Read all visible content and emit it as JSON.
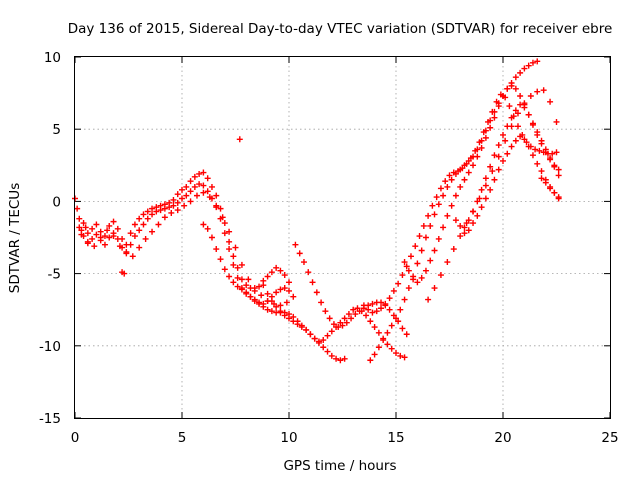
{
  "chart_data": {
    "type": "scatter",
    "title": "Day 136 of 2015, Sidereal Day-to-day VTEC variation (SDTVAR) for receiver ebre",
    "xlabel": "GPS time / hours",
    "ylabel": "SDTVAR / TECUs",
    "xlim": [
      0,
      25
    ],
    "ylim": [
      -15,
      10
    ],
    "xticks": [
      "0",
      "5",
      "10",
      "15",
      "20",
      "25"
    ],
    "yticks": [
      "-15",
      "-10",
      "-5",
      "0",
      "5",
      "10"
    ],
    "grid": true,
    "marker": "plus",
    "color": "#ff0000",
    "series": [
      {
        "label": "",
        "x": [
          0.0,
          0.1,
          0.2,
          0.3,
          0.4,
          0.5,
          0.6,
          0.8,
          1.0,
          1.2,
          1.4,
          1.6,
          1.8,
          2.0,
          2.2,
          2.4,
          2.6,
          2.8,
          3.0,
          3.2,
          3.4,
          3.6,
          3.8,
          4.0,
          4.2,
          4.4,
          4.6,
          4.8,
          5.0,
          5.2,
          5.4,
          5.6,
          5.8,
          6.0,
          6.2,
          6.4,
          6.6,
          6.8,
          7.0,
          7.2,
          7.4,
          7.6,
          7.8,
          8.0,
          8.2,
          8.4,
          8.6,
          8.8,
          9.0,
          9.2,
          9.4,
          9.6,
          9.8,
          10.0,
          0.2,
          0.4,
          0.6,
          0.8,
          1.0,
          1.2,
          1.4,
          1.6,
          1.8,
          2.0,
          2.2,
          2.4,
          2.6,
          2.8,
          3.0,
          3.2,
          3.4,
          3.6,
          3.8,
          4.0,
          4.2,
          4.4,
          4.6,
          4.8,
          5.0,
          5.2,
          5.4,
          5.6,
          5.8,
          6.0,
          6.2,
          6.4,
          6.6,
          6.8,
          7.0,
          7.2,
          7.4,
          7.6,
          7.8,
          8.0,
          8.2,
          8.4,
          8.6,
          8.8,
          9.0,
          9.2,
          9.4,
          9.6,
          9.8,
          10.0,
          0.3,
          0.6,
          0.9,
          1.2,
          1.5,
          1.8,
          2.1,
          2.4,
          2.7,
          3.0,
          3.3,
          3.6,
          3.9,
          4.2,
          4.5,
          4.8,
          5.1,
          5.4,
          5.7,
          6.0,
          6.3,
          6.6,
          6.9,
          7.2,
          7.5,
          7.8,
          8.1,
          8.4,
          8.7,
          9.0,
          9.3,
          9.6,
          9.9,
          10.2,
          2.2,
          2.3,
          7.7,
          6.0,
          6.2,
          6.4,
          6.6,
          6.8,
          7.0,
          7.2,
          7.4,
          7.6,
          7.8,
          8.0,
          8.2,
          8.4,
          8.6,
          8.8,
          9.0,
          9.2,
          9.4,
          9.6,
          9.8,
          10.0,
          10.2,
          10.4,
          10.6,
          10.8,
          11.0,
          11.2,
          11.4,
          11.6,
          11.8,
          12.0,
          12.2,
          12.4,
          12.6,
          8.8,
          9.0,
          9.2,
          9.4,
          9.6,
          9.8,
          10.0,
          10.2,
          10.4,
          10.6,
          10.8,
          11.0,
          11.2,
          11.4,
          11.6,
          11.8,
          12.0,
          12.2,
          12.4,
          12.6,
          12.8,
          13.0,
          13.2,
          13.4,
          13.6,
          13.8,
          14.0,
          14.2,
          14.4,
          14.6,
          14.8,
          15.0,
          15.2,
          15.4,
          10.3,
          10.5,
          10.7,
          10.9,
          11.1,
          11.3,
          11.5,
          11.7,
          11.9,
          12.1,
          12.3,
          12.5,
          12.7,
          12.9,
          13.1,
          13.3,
          13.5,
          13.7,
          13.9,
          14.1,
          14.3,
          14.5,
          14.7,
          14.9,
          15.1,
          15.3,
          15.5,
          13.8,
          14.0,
          14.2,
          14.4,
          14.6,
          14.8,
          15.0,
          15.2,
          15.4,
          15.6,
          15.8,
          16.0,
          16.2,
          16.4,
          16.6,
          16.8,
          17.0,
          17.2,
          17.4,
          17.6,
          17.8,
          18.0,
          18.2,
          18.4,
          18.6,
          18.8,
          19.0,
          19.2,
          19.4,
          19.6,
          19.8,
          20.0,
          20.2,
          20.4,
          20.6,
          20.8,
          21.0,
          21.2,
          21.4,
          21.6,
          13.5,
          13.7,
          13.9,
          14.1,
          14.3,
          14.5,
          14.7,
          14.9,
          15.1,
          15.3,
          15.5,
          15.7,
          15.9,
          16.1,
          16.3,
          16.5,
          16.7,
          16.9,
          17.1,
          17.3,
          17.5,
          17.7,
          17.9,
          18.1,
          18.3,
          18.5,
          18.7,
          18.9,
          19.1,
          19.3,
          19.5,
          19.7,
          19.9,
          20.1,
          20.3,
          20.5,
          20.7,
          20.9,
          21.1,
          21.3,
          21.5,
          21.7,
          21.9,
          22.1,
          22.3,
          22.5,
          15.4,
          15.6,
          15.8,
          16.0,
          16.2,
          16.4,
          16.6,
          16.8,
          17.0,
          17.2,
          17.4,
          17.6,
          17.8,
          18.0,
          18.2,
          18.4,
          18.6,
          18.8,
          19.0,
          19.2,
          19.4,
          19.6,
          19.8,
          20.0,
          20.2,
          20.4,
          20.6,
          20.8,
          21.0,
          21.2,
          21.4,
          21.6,
          21.8,
          22.0,
          22.2,
          22.4,
          22.6,
          16.5,
          16.8,
          17.1,
          17.4,
          17.7,
          18.0,
          18.3,
          18.6,
          18.9,
          19.2,
          19.5,
          19.8,
          20.1,
          20.4,
          20.7,
          21.0,
          21.3,
          21.6,
          21.9,
          22.2,
          22.5,
          17.8,
          18.0,
          18.2,
          18.4,
          18.6,
          18.8,
          19.0,
          19.2,
          19.4,
          19.6,
          19.8,
          20.0,
          20.2,
          20.4,
          20.6,
          20.8,
          21.0,
          21.2,
          21.4,
          21.6,
          21.8,
          22.0,
          22.2,
          22.4,
          22.6,
          18.2,
          18.4,
          18.6,
          18.8,
          19.0,
          19.2,
          19.4,
          19.6,
          19.8,
          20.0,
          20.2,
          20.4,
          20.6,
          20.8,
          21.0,
          21.2,
          21.4,
          21.6,
          21.8,
          22.0,
          22.2,
          22.4,
          22.6,
          21.8,
          22.0,
          22.2,
          22.4,
          22.6
        ],
        "y": [
          0.2,
          -0.5,
          -1.2,
          -2.0,
          -1.5,
          -1.8,
          -2.2,
          -1.9,
          -1.6,
          -2.1,
          -2.4,
          -1.7,
          -1.4,
          -1.9,
          -2.6,
          -3.0,
          -2.2,
          -1.6,
          -1.2,
          -0.9,
          -0.7,
          -0.5,
          -0.4,
          -0.3,
          -0.2,
          -0.1,
          0.1,
          0.5,
          0.8,
          1.0,
          1.4,
          1.7,
          1.9,
          2.0,
          1.6,
          1.0,
          0.4,
          -0.5,
          -1.5,
          -2.8,
          -3.8,
          -4.6,
          -5.4,
          -5.8,
          -6.0,
          -6.2,
          -5.9,
          -5.5,
          -5.2,
          -4.9,
          -4.6,
          -4.8,
          -5.1,
          -5.6,
          -1.8,
          -2.4,
          -2.9,
          -2.6,
          -2.3,
          -2.7,
          -3.0,
          -2.5,
          -2.2,
          -2.6,
          -3.2,
          -3.6,
          -3.0,
          -2.4,
          -2.0,
          -1.6,
          -1.2,
          -0.9,
          -0.7,
          -0.6,
          -0.5,
          -0.4,
          -0.3,
          -0.1,
          0.2,
          0.4,
          0.7,
          1.0,
          1.2,
          1.1,
          0.7,
          0.2,
          -0.4,
          -1.2,
          -2.2,
          -3.3,
          -4.4,
          -5.3,
          -6.0,
          -6.4,
          -6.6,
          -6.8,
          -7.0,
          -7.1,
          -6.9,
          -6.6,
          -6.3,
          -6.1,
          -6.0,
          -6.2,
          -2.3,
          -2.8,
          -3.1,
          -2.5,
          -2.0,
          -2.4,
          -3.1,
          -3.5,
          -3.8,
          -3.2,
          -2.6,
          -2.1,
          -1.6,
          -1.1,
          -0.8,
          -0.6,
          -0.3,
          0.0,
          0.4,
          0.6,
          0.3,
          -0.3,
          -1.1,
          -2.1,
          -3.2,
          -4.4,
          -5.4,
          -6.0,
          -6.5,
          -6.9,
          -7.1,
          -7.2,
          -7.0,
          -6.6,
          -4.9,
          -5.0,
          4.3,
          -1.6,
          -1.9,
          -2.5,
          -3.3,
          -4.0,
          -4.7,
          -5.2,
          -5.6,
          -5.9,
          -6.1,
          -6.3,
          -6.6,
          -6.9,
          -7.1,
          -7.3,
          -7.5,
          -7.6,
          -7.7,
          -7.7,
          -7.7,
          -7.8,
          -8.0,
          -8.3,
          -8.6,
          -8.9,
          -9.2,
          -9.5,
          -9.8,
          -10.1,
          -10.4,
          -10.7,
          -10.9,
          -11.0,
          -10.9,
          -5.8,
          -6.4,
          -6.9,
          -7.3,
          -7.6,
          -7.9,
          -8.1,
          -8.3,
          -8.5,
          -8.7,
          -8.9,
          -9.2,
          -9.5,
          -9.7,
          -9.6,
          -9.3,
          -9.0,
          -8.7,
          -8.4,
          -8.1,
          -7.8,
          -7.5,
          -7.4,
          -7.6,
          -7.9,
          -8.3,
          -8.7,
          -9.1,
          -9.5,
          -9.9,
          -10.2,
          -10.5,
          -10.7,
          -10.8,
          -3.0,
          -3.6,
          -4.2,
          -4.9,
          -5.6,
          -6.3,
          -7.0,
          -7.6,
          -8.1,
          -8.5,
          -8.7,
          -8.6,
          -8.4,
          -8.1,
          -7.8,
          -7.6,
          -7.4,
          -7.2,
          -7.1,
          -7.0,
          -7.0,
          -7.2,
          -7.5,
          -7.9,
          -8.3,
          -8.8,
          -9.2,
          -11.0,
          -10.6,
          -10.1,
          -9.6,
          -9.1,
          -8.6,
          -8.1,
          -7.5,
          -6.8,
          -6.0,
          -5.2,
          -4.3,
          -3.4,
          -2.5,
          -1.7,
          -0.9,
          -0.2,
          0.4,
          1.0,
          1.5,
          1.9,
          2.2,
          2.5,
          2.8,
          3.1,
          3.6,
          4.2,
          4.9,
          5.6,
          6.2,
          6.8,
          7.3,
          7.8,
          8.2,
          8.6,
          8.9,
          9.2,
          9.4,
          9.6,
          9.7,
          -7.2,
          -7.5,
          -7.7,
          -7.6,
          -7.4,
          -7.1,
          -6.7,
          -6.2,
          -5.7,
          -5.1,
          -4.5,
          -3.8,
          -3.1,
          -2.4,
          -1.7,
          -1.0,
          -0.3,
          0.3,
          0.9,
          1.4,
          1.8,
          2.0,
          2.1,
          2.3,
          2.6,
          3.0,
          3.5,
          4.1,
          4.8,
          5.5,
          6.2,
          6.9,
          7.4,
          7.2,
          6.6,
          5.9,
          5.2,
          4.6,
          4.1,
          3.8,
          3.6,
          3.5,
          3.4,
          3.3,
          3.3,
          3.4,
          -4.2,
          -4.8,
          -5.4,
          -5.6,
          -5.3,
          -4.8,
          -4.1,
          -3.4,
          -2.6,
          -1.8,
          -1.0,
          -0.3,
          0.4,
          1.0,
          1.5,
          2.0,
          2.5,
          3.1,
          3.7,
          4.4,
          5.1,
          5.8,
          6.6,
          7.3,
          7.8,
          8.0,
          7.8,
          7.3,
          6.7,
          6.0,
          5.3,
          4.6,
          4.0,
          3.4,
          2.9,
          2.5,
          2.2,
          -6.8,
          -6.0,
          -5.1,
          -4.2,
          -3.3,
          -2.4,
          -1.5,
          -0.7,
          0.2,
          1.1,
          2.1,
          3.1,
          4.2,
          5.2,
          6.1,
          6.8,
          7.3,
          7.6,
          7.7,
          6.9,
          5.5,
          -1.3,
          -1.7,
          -2.2,
          -2.0,
          -1.5,
          -1.0,
          -0.4,
          0.2,
          0.8,
          1.5,
          2.2,
          2.8,
          3.3,
          3.8,
          4.2,
          4.5,
          4.3,
          3.8,
          3.2,
          2.6,
          2.1,
          1.5,
          1.0,
          0.6,
          0.2,
          -1.8,
          -1.3,
          -0.7,
          0.0,
          0.8,
          1.6,
          2.4,
          3.2,
          3.9,
          4.6,
          5.2,
          5.8,
          6.3,
          6.7,
          6.5,
          6.0,
          5.4,
          4.8,
          4.2,
          3.6,
          3.0,
          2.4,
          1.8,
          1.6,
          1.3,
          0.9,
          0.6,
          0.3
        ]
      }
    ]
  }
}
